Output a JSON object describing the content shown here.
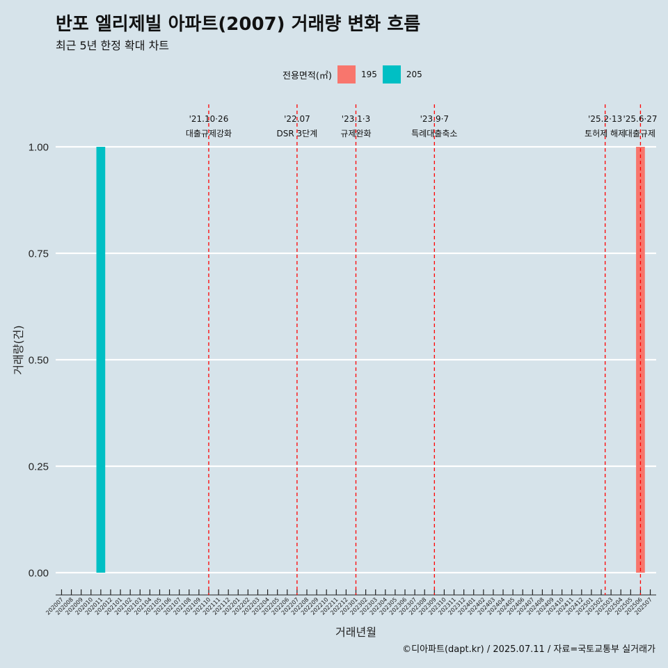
{
  "chart_data": {
    "type": "bar",
    "title": "반포 엘리제빌 아파트(2007) 거래량 변화 흐름",
    "subtitle": "최근 5년 한정 확대 차트",
    "xlabel": "거래년월",
    "ylabel": "거래량(건)",
    "ylim": [
      0,
      1
    ],
    "y_ticks": [
      "0.00",
      "0.25",
      "0.50",
      "0.75",
      "1.00"
    ],
    "grid": true,
    "legend": {
      "title": "전용면적(㎡)",
      "position": "top",
      "entries": [
        {
          "name": "195",
          "color": "#f8766d"
        },
        {
          "name": "205",
          "color": "#00bfc4"
        }
      ]
    },
    "categories": [
      "202007",
      "202008",
      "202009",
      "202010",
      "202011",
      "202012",
      "202101",
      "202102",
      "202103",
      "202104",
      "202105",
      "202106",
      "202107",
      "202108",
      "202109",
      "202110",
      "202111",
      "202112",
      "202201",
      "202202",
      "202203",
      "202204",
      "202205",
      "202206",
      "202207",
      "202208",
      "202209",
      "202210",
      "202211",
      "202212",
      "202301",
      "202302",
      "202303",
      "202304",
      "202305",
      "202306",
      "202307",
      "202308",
      "202309",
      "202310",
      "202311",
      "202312",
      "202401",
      "202402",
      "202403",
      "202404",
      "202405",
      "202406",
      "202407",
      "202408",
      "202409",
      "202410",
      "202411",
      "202412",
      "202501",
      "202502",
      "202503",
      "202504",
      "202505",
      "202506",
      "202507"
    ],
    "series": [
      {
        "name": "195",
        "color": "#f8766d",
        "points": [
          {
            "x": "202506",
            "y": 1
          }
        ]
      },
      {
        "name": "205",
        "color": "#00bfc4",
        "points": [
          {
            "x": "202011",
            "y": 1
          }
        ]
      }
    ],
    "annotations": [
      {
        "x": "202110",
        "date": "'21.10·26",
        "label": "대출규제강화"
      },
      {
        "x": "202207",
        "date": "'22.07",
        "label": "DSR 3단계"
      },
      {
        "x": "202301",
        "date": "'23.1·3",
        "label": "규제완화"
      },
      {
        "x": "202309",
        "date": "'23.9·7",
        "label": "특례대출축소"
      },
      {
        "x": "202502",
        "x_offset": 0.4,
        "date": "'25.2·13",
        "label": "토허제 해제"
      },
      {
        "x": "202506",
        "date": "'25.6·27",
        "label": "대출규제"
      }
    ],
    "caption": "©디아파트(dapt.kr) / 2025.07.11 / 자료=국토교통부 실거래가"
  }
}
